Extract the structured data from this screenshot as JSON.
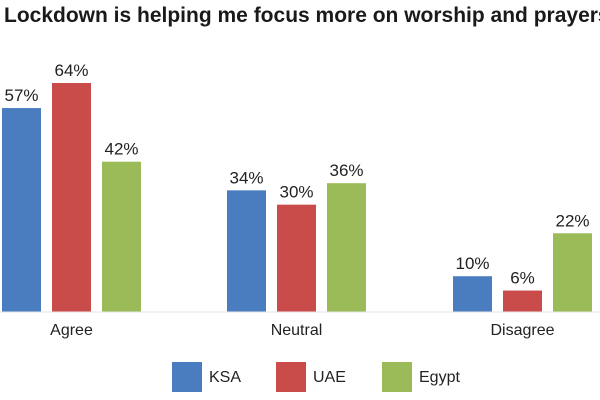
{
  "chart_data": {
    "type": "bar",
    "title": "Lockdown is helping me focus more on worship and prayers",
    "categories": [
      "Agree",
      "Neutral",
      "Disagree"
    ],
    "series": [
      {
        "name": "KSA",
        "color": "#4a7dc0",
        "values": [
          57,
          34,
          10
        ],
        "labels": [
          "57%",
          "34%",
          "10%"
        ]
      },
      {
        "name": "UAE",
        "color": "#c94c4b",
        "values": [
          64,
          30,
          6
        ],
        "labels": [
          "64%",
          "30%",
          "6%"
        ]
      },
      {
        "name": "Egypt",
        "color": "#9bbb59",
        "values": [
          42,
          36,
          22
        ],
        "labels": [
          "42%",
          "36%",
          "22%"
        ]
      }
    ],
    "ylim": [
      0,
      64
    ],
    "grid": false,
    "legend_position": "bottom",
    "xlabel": "",
    "ylabel": ""
  }
}
